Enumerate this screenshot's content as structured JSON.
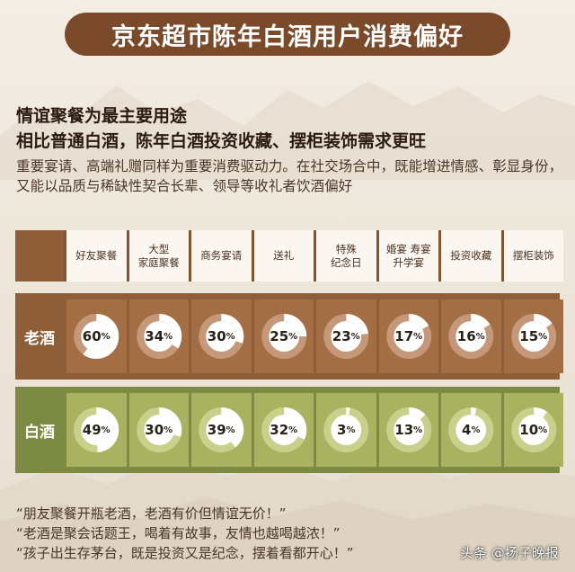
{
  "title": "京东超市陈年白酒用户消费偏好",
  "headline_1": "情谊聚餐为最主要用途",
  "headline_2": "相比普通白酒，陈年白酒投资收藏、摆柜装饰需求更旺",
  "body_text": "重要宴请、高端礼赠同样为重要消费驱动力。在社交场合中，既能增进情感、彰显身份，又能以品质与稀缺性契合长辈、领导等收礼者饮酒偏好",
  "chart_data": {
    "type": "table",
    "categories": [
      "好友聚餐",
      "大型\n家庭聚餐",
      "商务宴请",
      "送礼",
      "特殊\n纪念日",
      "婚宴 寿宴\n升学宴",
      "投资收藏",
      "摆柜装饰"
    ],
    "series": [
      {
        "name": "老酒",
        "values": [
          60,
          34,
          30,
          25,
          23,
          17,
          16,
          15
        ]
      },
      {
        "name": "白酒",
        "values": [
          49,
          30,
          39,
          32,
          3,
          13,
          4,
          10
        ]
      }
    ],
    "unit": "%"
  },
  "quotes": [
    "“朋友聚餐开瓶老酒，老酒有价但情谊无价！”",
    "“老酒是聚会话题王，喝着有故事，友情也越喝越浓！”",
    "“孩子出生存茅台，既是投资又是纪念，摆着看都开心！”"
  ],
  "watermark": "头条 @扬子晚报",
  "colors": {
    "title_bg": "#7a4a2a",
    "old_row_bg": "#8e5e38",
    "old_cell_bg": "#a36e44",
    "baijiu_row_bg": "#7c8a44",
    "baijiu_cell_bg": "#a9b35f",
    "donut_fill": "#ffffff",
    "donut_track_old": "#c6987a",
    "donut_track_baijiu": "#c9d08b"
  }
}
